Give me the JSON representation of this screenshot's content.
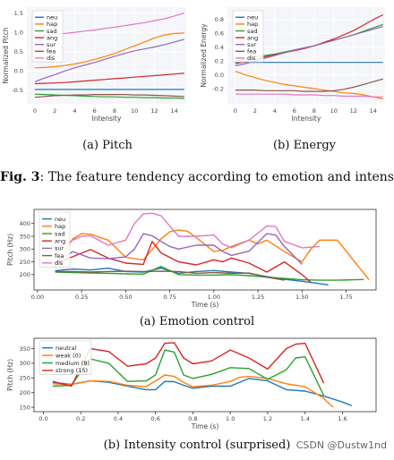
{
  "captions": {
    "a_top": "(a) Pitch",
    "b_top": "(b) Energy",
    "fig_label": "Fig. 3",
    "fig_text": ": The feature tendency according to emotion and intensity",
    "a_bottom": "(a) Emotion control",
    "b_bottom": "(b) Intensity control (surprised)"
  },
  "watermark": "CSDN @Dustw1nd",
  "colors": {
    "neu": "#1f77b4",
    "hap": "#ff7f0e",
    "sad": "#2ca02c",
    "ang": "#d62728",
    "sur": "#9467bd",
    "fea": "#8c564b",
    "dis": "#e377c2"
  },
  "chart_data": [
    {
      "type": "line",
      "title": "",
      "xlabel": "Intensity",
      "ylabel": "Normalized Pitch",
      "xlim": [
        -0.8,
        15.2
      ],
      "ylim": [
        -0.85,
        1.65
      ],
      "xticks": [
        0,
        2,
        4,
        6,
        8,
        10,
        12,
        14
      ],
      "yticks": [
        -0.5,
        0.0,
        0.5,
        1.0,
        1.5
      ],
      "ytick_labels": [
        "-0.5",
        "0.0",
        "0.5",
        "1.0",
        "1.5"
      ],
      "legend": "top-left",
      "x": [
        0,
        1,
        2,
        3,
        4,
        5,
        6,
        7,
        8,
        9,
        10,
        11,
        12,
        13,
        14,
        15
      ],
      "series": [
        {
          "name": "neu",
          "values": [
            -0.48,
            -0.48,
            -0.48,
            -0.48,
            -0.48,
            -0.48,
            -0.48,
            -0.48,
            -0.48,
            -0.48,
            -0.48,
            -0.48,
            -0.48,
            -0.48,
            -0.48,
            -0.48
          ]
        },
        {
          "name": "hap",
          "values": [
            0.08,
            0.09,
            0.11,
            0.14,
            0.18,
            0.23,
            0.3,
            0.37,
            0.45,
            0.55,
            0.65,
            0.75,
            0.85,
            0.93,
            0.97,
            0.98
          ]
        },
        {
          "name": "sad",
          "values": [
            -0.6,
            -0.61,
            -0.62,
            -0.63,
            -0.64,
            -0.65,
            -0.66,
            -0.67,
            -0.67,
            -0.68,
            -0.68,
            -0.69,
            -0.69,
            -0.7,
            -0.7,
            -0.71
          ]
        },
        {
          "name": "ang",
          "values": [
            -0.33,
            -0.32,
            -0.31,
            -0.3,
            -0.28,
            -0.26,
            -0.24,
            -0.22,
            -0.2,
            -0.18,
            -0.16,
            -0.14,
            -0.12,
            -0.1,
            -0.08,
            -0.06
          ]
        },
        {
          "name": "sur",
          "values": [
            -0.28,
            -0.18,
            -0.1,
            0.0,
            0.08,
            0.15,
            0.22,
            0.3,
            0.38,
            0.45,
            0.52,
            0.57,
            0.62,
            0.68,
            0.75,
            0.82
          ]
        },
        {
          "name": "fea",
          "values": [
            -0.68,
            -0.66,
            -0.64,
            -0.63,
            -0.62,
            -0.62,
            -0.61,
            -0.61,
            -0.61,
            -0.61,
            -0.62,
            -0.62,
            -0.63,
            -0.64,
            -0.65,
            -0.66
          ]
        },
        {
          "name": "dis",
          "values": [
            0.9,
            0.92,
            0.95,
            0.97,
            1.0,
            1.03,
            1.06,
            1.1,
            1.13,
            1.17,
            1.21,
            1.25,
            1.3,
            1.35,
            1.42,
            1.5
          ]
        }
      ]
    },
    {
      "type": "line",
      "title": "",
      "xlabel": "Intensity",
      "ylabel": "Normalized Energy",
      "xlim": [
        -0.8,
        15.2
      ],
      "ylim": [
        -0.42,
        0.98
      ],
      "xticks": [
        0,
        2,
        4,
        6,
        8,
        10,
        12,
        14
      ],
      "yticks": [
        -0.2,
        0.0,
        0.2,
        0.4,
        0.6,
        0.8
      ],
      "ytick_labels": [
        "-0.2",
        "0.0",
        "0.2",
        "0.4",
        "0.6",
        "0.8"
      ],
      "legend": "top-left",
      "x": [
        0,
        1,
        2,
        3,
        4,
        5,
        6,
        7,
        8,
        9,
        10,
        11,
        12,
        13,
        14,
        15
      ],
      "series": [
        {
          "name": "neu",
          "values": [
            0.18,
            0.18,
            0.18,
            0.18,
            0.18,
            0.18,
            0.18,
            0.18,
            0.18,
            0.18,
            0.18,
            0.18,
            0.18,
            0.18,
            0.18,
            0.18
          ]
        },
        {
          "name": "hap",
          "values": [
            0.05,
            0.0,
            -0.04,
            -0.08,
            -0.11,
            -0.14,
            -0.16,
            -0.18,
            -0.2,
            -0.22,
            -0.24,
            -0.26,
            -0.27,
            -0.29,
            -0.32,
            -0.35
          ]
        },
        {
          "name": "sad",
          "values": [
            0.2,
            0.23,
            0.26,
            0.28,
            0.3,
            0.33,
            0.36,
            0.39,
            0.42,
            0.46,
            0.5,
            0.54,
            0.58,
            0.63,
            0.68,
            0.73
          ]
        },
        {
          "name": "ang",
          "values": [
            0.16,
            0.19,
            0.22,
            0.26,
            0.29,
            0.32,
            0.35,
            0.38,
            0.42,
            0.47,
            0.52,
            0.58,
            0.64,
            0.72,
            0.8,
            0.87
          ]
        },
        {
          "name": "sur",
          "values": [
            0.13,
            0.16,
            0.2,
            0.24,
            0.28,
            0.32,
            0.36,
            0.39,
            0.42,
            0.46,
            0.5,
            0.54,
            0.58,
            0.62,
            0.66,
            0.7
          ]
        },
        {
          "name": "fea",
          "values": [
            -0.22,
            -0.22,
            -0.22,
            -0.23,
            -0.23,
            -0.23,
            -0.23,
            -0.24,
            -0.24,
            -0.24,
            -0.23,
            -0.21,
            -0.18,
            -0.14,
            -0.1,
            -0.06
          ]
        },
        {
          "name": "dis",
          "values": [
            -0.28,
            -0.28,
            -0.28,
            -0.28,
            -0.28,
            -0.28,
            -0.29,
            -0.29,
            -0.29,
            -0.3,
            -0.3,
            -0.31,
            -0.31,
            -0.31,
            -0.32,
            -0.32
          ]
        }
      ]
    },
    {
      "type": "line",
      "title": "",
      "xlabel": "Time (s)",
      "ylabel": "Pitch (Hz)",
      "xlim": [
        -0.02,
        1.92
      ],
      "ylim": [
        140,
        455
      ],
      "xticks": [
        0.0,
        0.25,
        0.5,
        0.75,
        1.0,
        1.25,
        1.5,
        1.75
      ],
      "xtick_labels": [
        "0.00",
        "0.25",
        "0.50",
        "0.75",
        "1.00",
        "1.25",
        "1.50",
        "1.75"
      ],
      "yticks": [
        200,
        250,
        300,
        350,
        400
      ],
      "legend": "top-left",
      "series": [
        {
          "name": "neu",
          "x": [
            0.1,
            0.2,
            0.3,
            0.4,
            0.5,
            0.6,
            0.7,
            0.8,
            0.9,
            1.0,
            1.1,
            1.2,
            1.3,
            1.4,
            1.5,
            1.6,
            1.65
          ],
          "values": [
            215,
            222,
            218,
            225,
            212,
            210,
            225,
            205,
            212,
            216,
            210,
            205,
            192,
            182,
            174,
            165,
            160
          ]
        },
        {
          "name": "hap",
          "x": [
            0.1,
            0.2,
            0.25,
            0.3,
            0.4,
            0.5,
            0.55,
            0.6,
            0.7,
            0.75,
            0.8,
            0.85,
            0.9,
            1.0,
            1.05,
            1.1,
            1.2,
            1.25,
            1.3,
            1.4,
            1.5,
            1.55,
            1.6,
            1.7,
            1.88
          ],
          "values": [
            230,
            340,
            360,
            358,
            335,
            268,
            262,
            258,
            340,
            368,
            375,
            370,
            345,
            290,
            295,
            310,
            335,
            320,
            335,
            290,
            250,
            300,
            335,
            335,
            180
          ]
        },
        {
          "name": "sad",
          "x": [
            0.1,
            0.2,
            0.3,
            0.4,
            0.5,
            0.6,
            0.7,
            0.8,
            0.9,
            1.0,
            1.1,
            1.2,
            1.3,
            1.4,
            1.5,
            1.6,
            1.7,
            1.8,
            1.85
          ],
          "values": [
            210,
            208,
            206,
            205,
            203,
            202,
            232,
            200,
            198,
            198,
            200,
            196,
            190,
            185,
            180,
            178,
            178,
            180,
            181
          ]
        },
        {
          "name": "ang",
          "x": [
            0.1,
            0.2,
            0.3,
            0.4,
            0.5,
            0.6,
            0.65,
            0.7,
            0.8,
            0.9,
            1.0,
            1.05,
            1.1,
            1.2,
            1.3,
            1.4,
            1.5,
            1.55
          ],
          "values": [
            245,
            270,
            298,
            265,
            245,
            240,
            330,
            285,
            250,
            238,
            258,
            250,
            265,
            245,
            210,
            250,
            200,
            170
          ]
        },
        {
          "name": "sur",
          "x": [
            0.1,
            0.2,
            0.3,
            0.4,
            0.5,
            0.55,
            0.6,
            0.65,
            0.7,
            0.75,
            0.8,
            0.9,
            1.0,
            1.05,
            1.1,
            1.2,
            1.3,
            1.35,
            1.4,
            1.5
          ],
          "values": [
            250,
            290,
            265,
            262,
            270,
            300,
            360,
            352,
            330,
            310,
            300,
            315,
            315,
            290,
            275,
            292,
            360,
            355,
            310,
            240
          ]
        },
        {
          "name": "fea",
          "x": [
            0.1,
            0.2,
            0.3,
            0.4,
            0.5,
            0.6,
            0.7,
            0.8,
            0.9,
            1.0,
            1.1,
            1.2,
            1.3,
            1.4
          ],
          "values": [
            212,
            212,
            210,
            212,
            213,
            212,
            213,
            212,
            205,
            208,
            205,
            206,
            190,
            178
          ]
        },
        {
          "name": "dis",
          "x": [
            0.1,
            0.2,
            0.25,
            0.3,
            0.4,
            0.5,
            0.55,
            0.6,
            0.65,
            0.7,
            0.75,
            0.8,
            0.9,
            1.0,
            1.05,
            1.1,
            1.2,
            1.3,
            1.35,
            1.4,
            1.5,
            1.6
          ],
          "values": [
            300,
            335,
            350,
            352,
            315,
            335,
            400,
            438,
            440,
            430,
            390,
            350,
            350,
            355,
            320,
            305,
            335,
            390,
            388,
            330,
            305,
            310
          ]
        }
      ]
    },
    {
      "type": "line",
      "title": "",
      "xlabel": "Time (s)",
      "ylabel": "Pitch (Hz)",
      "xlim": [
        -0.05,
        1.78
      ],
      "ylim": [
        135,
        385
      ],
      "xticks": [
        0.0,
        0.2,
        0.4,
        0.6,
        0.8,
        1.0,
        1.2,
        1.4,
        1.6
      ],
      "xtick_labels": [
        "0.0",
        "0.2",
        "0.4",
        "0.6",
        "0.8",
        "1.0",
        "1.2",
        "1.4",
        "1.6"
      ],
      "yticks": [
        150,
        200,
        250,
        300,
        350
      ],
      "legend": "top-left",
      "series": [
        {
          "name": "neutral",
          "x": [
            0.05,
            0.15,
            0.25,
            0.35,
            0.45,
            0.55,
            0.6,
            0.65,
            0.7,
            0.75,
            0.8,
            0.9,
            1.0,
            1.1,
            1.2,
            1.3,
            1.4,
            1.5,
            1.6,
            1.65
          ],
          "values": [
            235,
            228,
            240,
            235,
            222,
            210,
            210,
            238,
            237,
            225,
            215,
            222,
            222,
            248,
            240,
            210,
            205,
            188,
            168,
            155
          ]
        },
        {
          "name": "weak (0)",
          "x": [
            0.05,
            0.15,
            0.25,
            0.35,
            0.45,
            0.55,
            0.65,
            0.7,
            0.75,
            0.8,
            0.9,
            1.0,
            1.05,
            1.1,
            1.2,
            1.3,
            1.4,
            1.5,
            1.55
          ],
          "values": [
            230,
            228,
            240,
            238,
            225,
            220,
            260,
            255,
            235,
            220,
            225,
            238,
            252,
            255,
            248,
            230,
            220,
            180,
            150
          ]
        },
        {
          "name": "medium (8)",
          "x": [
            0.05,
            0.15,
            0.25,
            0.35,
            0.45,
            0.55,
            0.6,
            0.65,
            0.7,
            0.75,
            0.8,
            0.9,
            1.0,
            1.1,
            1.2,
            1.3,
            1.35,
            1.4,
            1.5
          ],
          "values": [
            222,
            225,
            315,
            300,
            238,
            240,
            260,
            345,
            338,
            260,
            248,
            262,
            285,
            282,
            245,
            278,
            318,
            322,
            190
          ]
        },
        {
          "name": "strong (15)",
          "x": [
            0.05,
            0.15,
            0.25,
            0.35,
            0.45,
            0.55,
            0.6,
            0.65,
            0.7,
            0.75,
            0.8,
            0.9,
            1.0,
            1.1,
            1.2,
            1.3,
            1.35,
            1.4,
            1.5
          ],
          "values": [
            238,
            222,
            350,
            340,
            290,
            298,
            318,
            368,
            370,
            318,
            298,
            308,
            345,
            318,
            280,
            350,
            365,
            368,
            232
          ]
        }
      ]
    }
  ]
}
